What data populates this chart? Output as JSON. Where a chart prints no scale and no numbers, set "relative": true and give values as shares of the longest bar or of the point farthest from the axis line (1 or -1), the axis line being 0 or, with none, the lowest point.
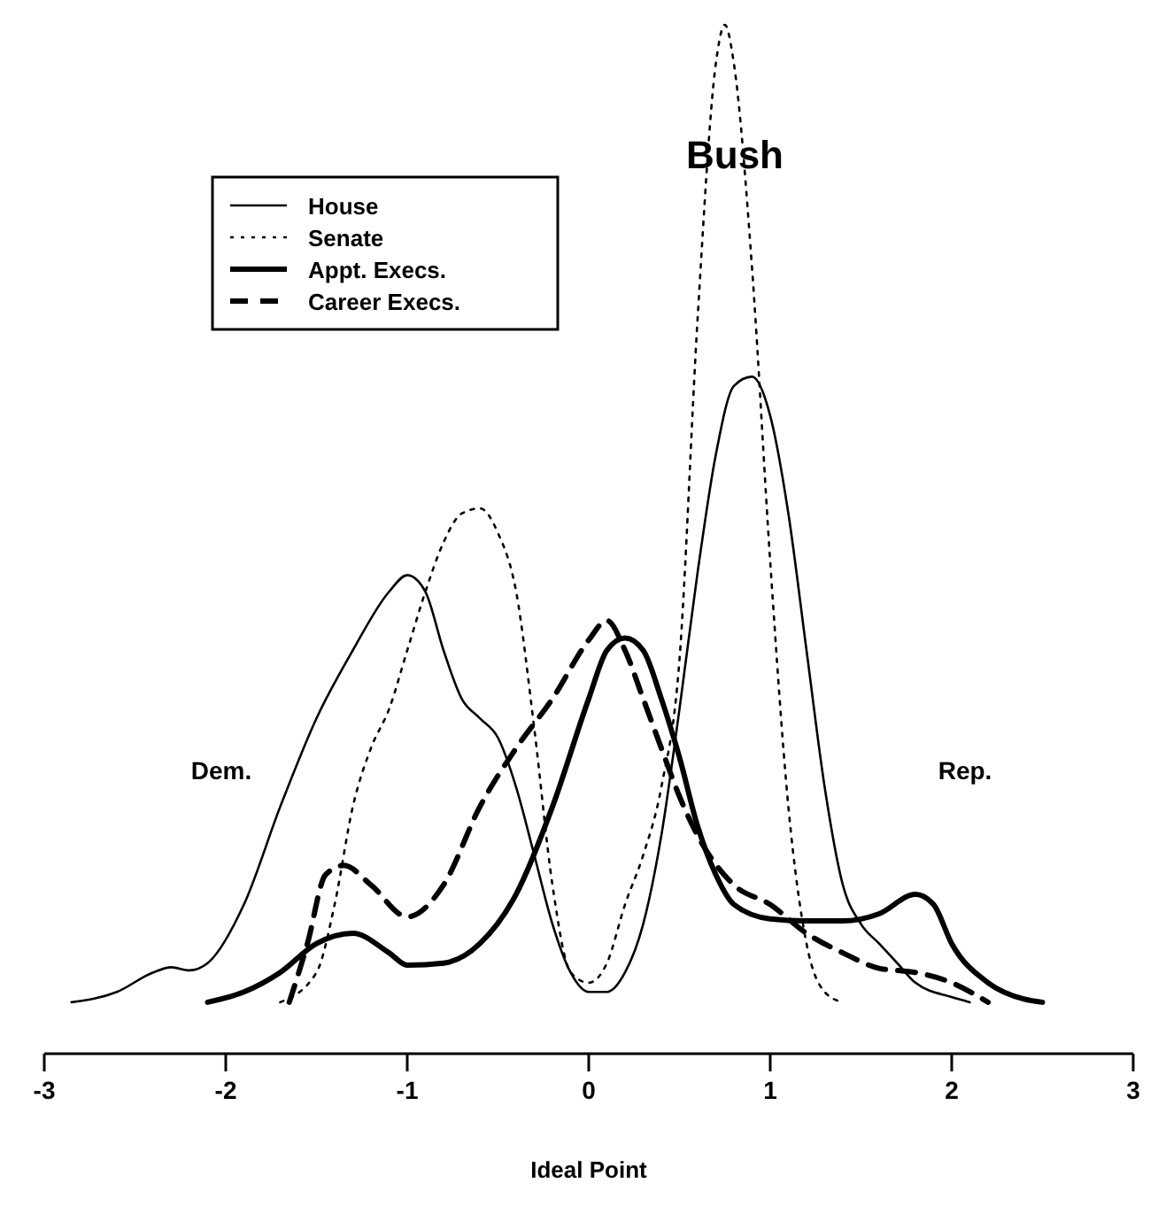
{
  "chart_data": {
    "type": "line",
    "relative": true,
    "xlabel": "Ideal Point",
    "xlim": [
      -3,
      3
    ],
    "xticks": [
      -3,
      -2,
      -1,
      0,
      1,
      2,
      3
    ],
    "legend": "top left",
    "annotations": [
      "Bush",
      "Dem.",
      "Rep."
    ],
    "series": [
      {
        "name": "House",
        "color": "#000000",
        "line_style": "solid",
        "x": [
          -2.85,
          -2.6,
          -2.4,
          -2.3,
          -2.2,
          -2.1,
          -1.9,
          -1.7,
          -1.5,
          -1.3,
          -1.1,
          -1.0,
          -0.9,
          -0.8,
          -0.7,
          -0.6,
          -0.5,
          -0.4,
          -0.3,
          -0.2,
          -0.1,
          0.0,
          0.1,
          0.2,
          0.3,
          0.4,
          0.5,
          0.6,
          0.7,
          0.8,
          0.9,
          1.0,
          1.1,
          1.2,
          1.3,
          1.4,
          1.5,
          1.6,
          1.7,
          1.8,
          2.0,
          2.1
        ],
        "values": [
          0.05,
          0.06,
          0.079,
          0.084,
          0.081,
          0.088,
          0.145,
          0.24,
          0.326,
          0.392,
          0.449,
          0.465,
          0.449,
          0.392,
          0.345,
          0.326,
          0.307,
          0.259,
          0.193,
          0.126,
          0.079,
          0.06,
          0.06,
          0.079,
          0.126,
          0.212,
          0.335,
          0.468,
          0.582,
          0.649,
          0.658,
          0.62,
          0.525,
          0.392,
          0.259,
          0.164,
          0.126,
          0.107,
          0.088,
          0.069,
          0.055,
          0.05
        ]
      },
      {
        "name": "Senate",
        "color": "#000000",
        "line_style": "dotted",
        "x": [
          -1.7,
          -1.5,
          -1.4,
          -1.3,
          -1.2,
          -1.1,
          -1.0,
          -0.9,
          -0.8,
          -0.7,
          -0.6,
          -0.5,
          -0.4,
          -0.3,
          -0.2,
          -0.1,
          0.0,
          0.1,
          0.2,
          0.3,
          0.4,
          0.5,
          0.6,
          0.7,
          0.75,
          0.8,
          0.9,
          1.0,
          1.1,
          1.2,
          1.3,
          1.4
        ],
        "values": [
          0.05,
          0.079,
          0.145,
          0.24,
          0.297,
          0.335,
          0.392,
          0.449,
          0.497,
          0.525,
          0.53,
          0.506,
          0.449,
          0.316,
          0.164,
          0.079,
          0.069,
          0.088,
          0.145,
          0.193,
          0.259,
          0.383,
          0.715,
          0.962,
          1.0,
          0.962,
          0.763,
          0.478,
          0.24,
          0.107,
          0.06,
          0.05
        ]
      },
      {
        "name": "Appt. Execs.",
        "color": "#000000",
        "line_style": "solid",
        "x": [
          -2.1,
          -1.9,
          -1.7,
          -1.5,
          -1.3,
          -1.1,
          -1.0,
          -0.8,
          -0.6,
          -0.4,
          -0.2,
          0.0,
          0.1,
          0.2,
          0.3,
          0.4,
          0.5,
          0.6,
          0.7,
          0.8,
          1.0,
          1.2,
          1.4,
          1.6,
          1.8,
          1.9,
          2.0,
          2.2,
          2.4,
          2.5
        ],
        "values": [
          0.05,
          0.06,
          0.079,
          0.107,
          0.117,
          0.098,
          0.086,
          0.088,
          0.107,
          0.155,
          0.24,
          0.345,
          0.392,
          0.404,
          0.392,
          0.345,
          0.288,
          0.221,
          0.174,
          0.145,
          0.131,
          0.129,
          0.129,
          0.136,
          0.155,
          0.145,
          0.107,
          0.069,
          0.053,
          0.05
        ]
      },
      {
        "name": "Career Execs.",
        "color": "#000000",
        "line_style": "dashed",
        "x": [
          -1.65,
          -1.55,
          -1.45,
          -1.35,
          -1.2,
          -1.0,
          -0.8,
          -0.6,
          -0.4,
          -0.2,
          0.0,
          0.1,
          0.2,
          0.3,
          0.4,
          0.5,
          0.6,
          0.8,
          1.0,
          1.2,
          1.4,
          1.6,
          1.8,
          2.0,
          2.2
        ],
        "values": [
          0.05,
          0.107,
          0.174,
          0.183,
          0.164,
          0.133,
          0.164,
          0.24,
          0.297,
          0.345,
          0.402,
          0.421,
          0.392,
          0.345,
          0.297,
          0.25,
          0.212,
          0.164,
          0.145,
          0.117,
          0.098,
          0.083,
          0.079,
          0.069,
          0.05
        ]
      }
    ]
  }
}
